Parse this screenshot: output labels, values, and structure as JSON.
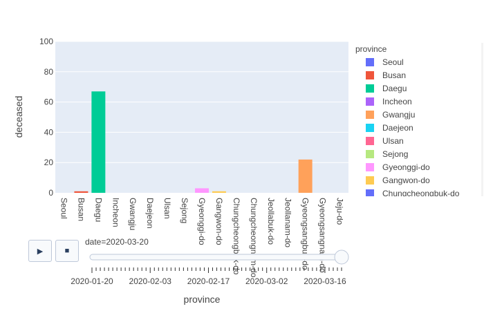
{
  "chart_data": {
    "type": "bar",
    "categories": [
      "Seoul",
      "Busan",
      "Daegu",
      "Incheon",
      "Gwangju",
      "Daejeon",
      "Ulsan",
      "Sejong",
      "Gyeonggi-do",
      "Gangwon-do",
      "Chungcheongbuk-do",
      "Chungcheongnam-do",
      "Jeollabuk-do",
      "Jeollanam-do",
      "Gyeongsangbuk-do",
      "Gyeongsangnam-do",
      "Jeju-do"
    ],
    "values": [
      0,
      1,
      67,
      0,
      0,
      0,
      0,
      0,
      3,
      1,
      0,
      0,
      0,
      0,
      22,
      0,
      0
    ],
    "colors": [
      "#636efa",
      "#EF553B",
      "#00cc96",
      "#ab63fa",
      "#FFA15A",
      "#19d3f3",
      "#FF6692",
      "#B6E880",
      "#FF97FF",
      "#FECB52",
      "#636efa",
      "#EF553B",
      "#00cc96",
      "#ab63fa",
      "#FFA15A",
      "#19d3f3",
      "#FF6692"
    ],
    "xlabel": "province",
    "ylabel": "deceased",
    "ylim": [
      0,
      100
    ],
    "yticks": [
      0,
      20,
      40,
      60,
      80,
      100
    ],
    "grid": true,
    "legend_title": "province",
    "legend_position": "right",
    "legend_entries": [
      "Seoul",
      "Busan",
      "Daegu",
      "Incheon",
      "Gwangju",
      "Daejeon",
      "Ulsan",
      "Sejong",
      "Gyeonggi-do",
      "Gangwon-do",
      "Chungcheongbuk-do"
    ]
  },
  "animation": {
    "current_label": "date=2020-03-20",
    "slider_ticks": [
      "2020-01-20",
      "2020-02-03",
      "2020-02-17",
      "2020-03-02",
      "2020-03-16"
    ],
    "slider_minor_tick_count": 61,
    "slider_value": 1.0
  },
  "buttons": {
    "play_icon": "▶",
    "stop_icon": "■"
  }
}
